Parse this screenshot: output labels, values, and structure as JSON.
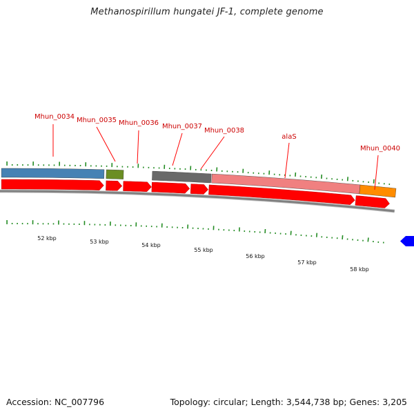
{
  "title": "Methanospirillum hungatei JF-1, complete genome",
  "footer": {
    "accession": "Accession: NC_007796",
    "summary": "Topology: circular; Length: 3,544,738 bp; Genes: 3,205"
  },
  "colors": {
    "cds": "#ff0000",
    "backbone": "#808080",
    "tick": "#228b22",
    "label": "#cc0000",
    "label_line": "#ff0000"
  },
  "genes": [
    {
      "name": "Mhun_0034",
      "color": "#4682b4"
    },
    {
      "name": "Mhun_0035",
      "color": "#6b8e23"
    },
    {
      "name": "Mhun_0036",
      "color": "#ffffff"
    },
    {
      "name": "Mhun_0037",
      "color": "#696969"
    },
    {
      "name": "Mhun_0038",
      "color": "#696969"
    },
    {
      "name": "alaS",
      "color": "#f08080"
    },
    {
      "name": "Mhun_0040",
      "color": "#ff8c00"
    }
  ],
  "scale_labels": [
    "52 kbp",
    "53 kbp",
    "54 kbp",
    "55 kbp",
    "56 kbp",
    "57 kbp",
    "58 kbp"
  ],
  "offscreen_feature_color": "#0000ff"
}
